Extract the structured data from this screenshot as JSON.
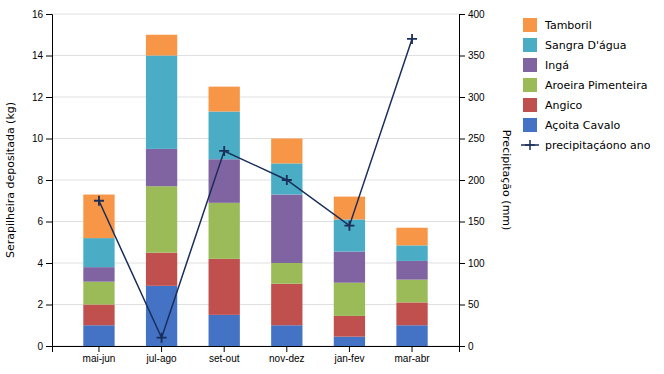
{
  "chart_data": {
    "type": "bar",
    "stacked": true,
    "categories": [
      "mai-jun",
      "jul-ago",
      "set-out",
      "nov-dez",
      "jan-fev",
      "mar-abr"
    ],
    "series": [
      {
        "name": "Açoita Cavalo",
        "color": "#4472c4",
        "values": [
          1.0,
          2.9,
          1.5,
          1.0,
          0.45,
          1.0
        ]
      },
      {
        "name": "Angico",
        "color": "#c0504d",
        "values": [
          1.0,
          1.6,
          2.7,
          2.0,
          1.0,
          1.1
        ]
      },
      {
        "name": "Aroeira Pimenteira",
        "color": "#9bbb59",
        "values": [
          1.1,
          3.2,
          2.7,
          1.0,
          1.6,
          1.1
        ]
      },
      {
        "name": "Ingá",
        "color": "#8064a2",
        "values": [
          0.7,
          1.8,
          2.1,
          3.3,
          1.5,
          0.9
        ]
      },
      {
        "name": "Sangra D'água",
        "color": "#4bacc6",
        "values": [
          1.4,
          4.5,
          2.3,
          1.5,
          1.55,
          0.75
        ]
      },
      {
        "name": "Tamboril",
        "color": "#f79646",
        "values": [
          2.1,
          1.0,
          1.2,
          1.2,
          1.1,
          0.85
        ]
      },
      {
        "name": "precipitaçáono ano",
        "type": "line",
        "axis": "y2",
        "color": "#1a2e5a",
        "marker": "plus",
        "values": [
          175,
          10,
          235,
          200,
          145,
          370
        ]
      }
    ],
    "ylabel": "Serapilheira depositada (kg)",
    "y2label": "Precipitação (mm)",
    "ylim": [
      0,
      16
    ],
    "yticks": [
      0,
      2,
      4,
      6,
      8,
      10,
      12,
      14,
      16
    ],
    "y2lim": [
      0,
      400
    ],
    "y2ticks": [
      0,
      50,
      100,
      150,
      200,
      250,
      300,
      350,
      400
    ],
    "grid": true,
    "legend": "right"
  }
}
